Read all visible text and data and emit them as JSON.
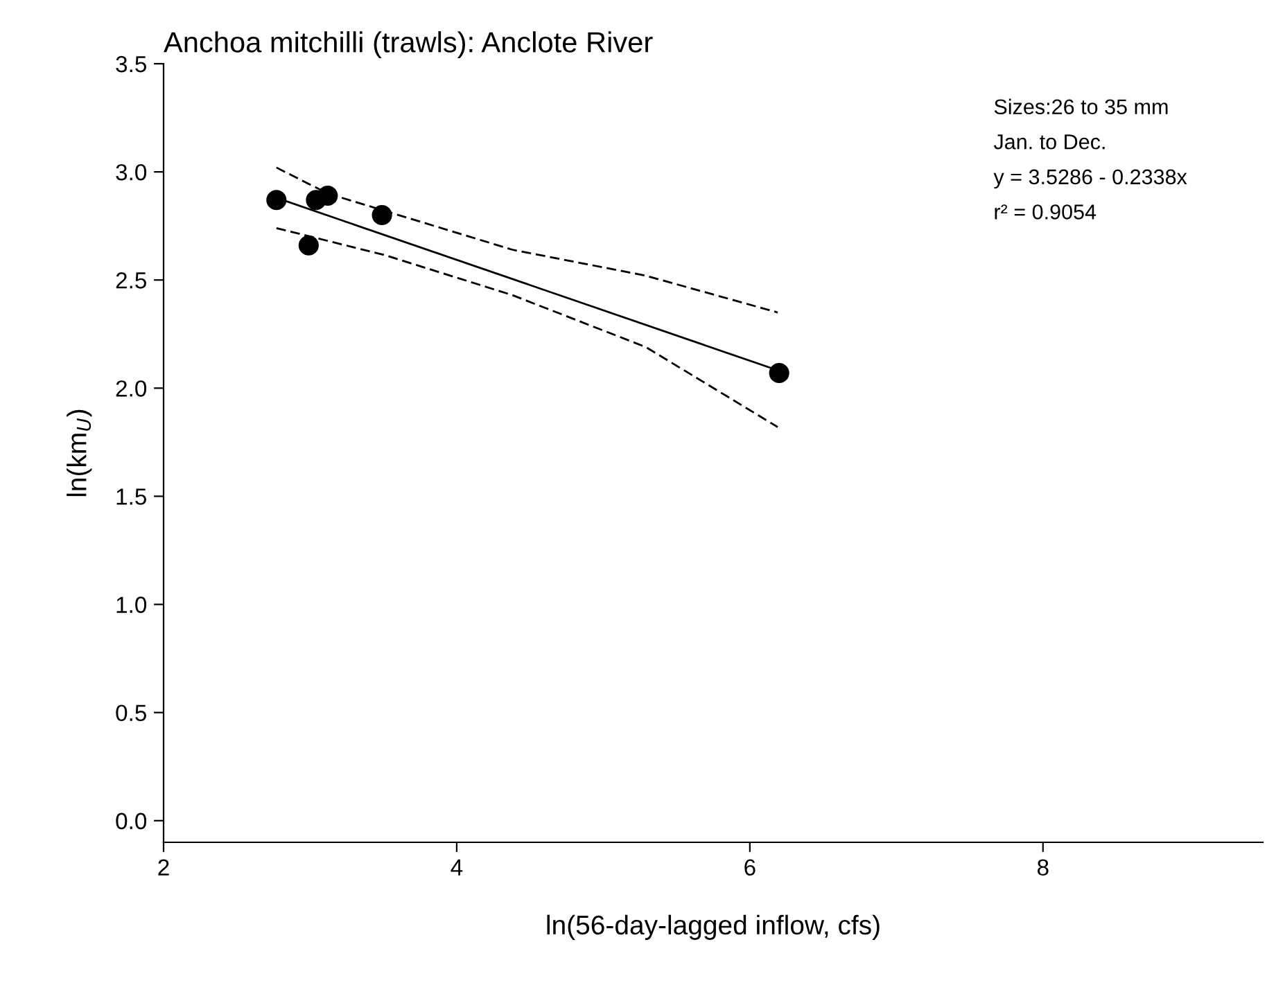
{
  "chart_data": {
    "type": "scatter",
    "title": "Anchoa mitchilli (trawls): Anclote River",
    "xlabel": "ln(56-day-lagged inflow, cfs)",
    "ylabel": "ln(km$_{U}$)",
    "series": [
      {
        "color": "#000000",
        "marker": "circle",
        "x": [
          2.77,
          2.99,
          3.04,
          3.12,
          3.49,
          6.2
        ],
        "values": [
          2.87,
          2.66,
          2.87,
          2.89,
          2.8,
          2.07
        ]
      },
      {
        "type": "line",
        "color": "#000000",
        "line_style": "solid",
        "x": [
          2.77,
          6.2
        ],
        "values": [
          2.88,
          2.08
        ]
      },
      {
        "type": "line",
        "color": "#000000",
        "line_style": "dashed",
        "x": [
          2.77,
          3.12,
          4.38,
          5.29,
          6.19
        ],
        "values": [
          3.02,
          2.9,
          2.64,
          2.52,
          2.35
        ]
      },
      {
        "type": "line",
        "color": "#000000",
        "line_style": "dashed",
        "x": [
          2.77,
          3.51,
          4.38,
          5.29,
          6.19
        ],
        "values": [
          2.74,
          2.615,
          2.43,
          2.19,
          1.82
        ]
      }
    ],
    "annotations": [
      "Sizes:26 to 35 mm",
      "Jan. to Dec.",
      "y = 3.5286 - 0.2338x",
      "r² = 0.9054"
    ],
    "xlim": [
      2,
      9.5
    ],
    "ylim": [
      -0.1,
      3.5
    ],
    "xticks": [
      2,
      4,
      6,
      8
    ],
    "yticks": [
      {
        "value": 0,
        "label": "0.0"
      },
      {
        "value": 0.5,
        "label": "0.5"
      },
      {
        "value": 1,
        "label": "1.0"
      },
      {
        "value": 1.5,
        "label": "1.5"
      },
      {
        "value": 2,
        "label": "2.0"
      },
      {
        "value": 2.5,
        "label": "2.5"
      },
      {
        "value": 3,
        "label": "3.0"
      },
      {
        "value": 3.5,
        "label": "3.5"
      }
    ],
    "grid": false,
    "legend": false
  }
}
